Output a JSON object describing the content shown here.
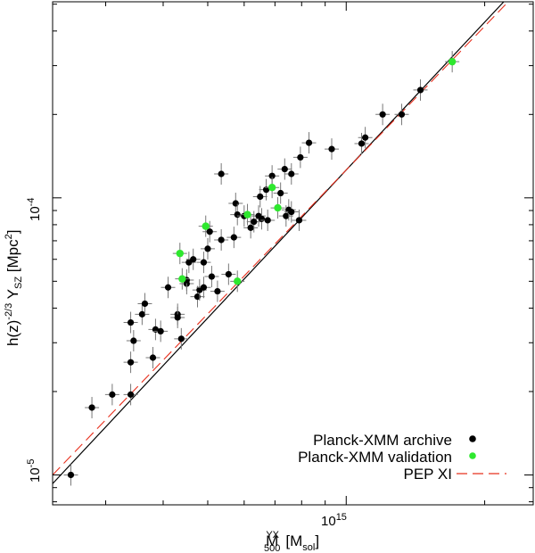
{
  "chart_data": {
    "type": "scatter",
    "xscale": "log",
    "yscale": "log",
    "xlim": [
      230000000000000.0,
      2550000000000000.0
    ],
    "ylim": [
      7.8e-06,
      0.00051
    ],
    "xlabel": {
      "main": "M",
      "sup": "YX",
      "sub": "500",
      "unit": "[M",
      "unit_sub": "sol",
      "unit_end": "]"
    },
    "ylabel": {
      "main": "h(z)",
      "sup": "-2/3",
      "mid": " Y",
      "sub": "SZ",
      "unit": " [Mpc",
      "unit_sup": "2",
      "unit_end": "]"
    },
    "xticks": [
      {
        "value": 1000000000000000.0,
        "base": "10",
        "exp": "15"
      }
    ],
    "yticks": [
      {
        "value": 1e-05,
        "base": "10",
        "exp": "-5"
      },
      {
        "value": 0.0001,
        "base": "10",
        "exp": "-4"
      }
    ],
    "legend": {
      "position": "bottom-right",
      "entries": [
        {
          "label": "Planck-XMM archive",
          "marker": "dot",
          "color": "#000000"
        },
        {
          "label": "Planck-XMM validation",
          "marker": "dot",
          "color": "#2ee82e"
        },
        {
          "label": "PEP XI",
          "marker": "dash",
          "color": "#e8301e"
        }
      ]
    },
    "fits": [
      {
        "name": "best fit",
        "color": "#000000",
        "style": "solid",
        "from": [
          230000000000000.0,
          9.3e-06
        ],
        "to": [
          2200000000000000.0,
          0.00051
        ]
      },
      {
        "name": "PEP XI",
        "color": "#e8301e",
        "style": "dashed",
        "from": [
          230000000000000.0,
          1e-05
        ],
        "to": [
          2250000000000000.0,
          0.00051
        ]
      }
    ],
    "series": [
      {
        "name": "Planck-XMM archive",
        "color": "#000000",
        "points": [
          [
            252000000000000.0,
            1e-05
          ],
          [
            280000000000000.0,
            1.75e-05
          ],
          [
            310000000000000.0,
            1.95e-05
          ],
          [
            340000000000000.0,
            1.95e-05
          ],
          [
            340000000000000.0,
            2.55e-05
          ],
          [
            345000000000000.0,
            3.05e-05
          ],
          [
            340000000000000.0,
            3.55e-05
          ],
          [
            360000000000000.0,
            3.8e-05
          ],
          [
            365000000000000.0,
            4.15e-05
          ],
          [
            380000000000000.0,
            2.65e-05
          ],
          [
            385000000000000.0,
            3.35e-05
          ],
          [
            395000000000000.0,
            3.3e-05
          ],
          [
            410000000000000.0,
            4.75e-05
          ],
          [
            430000000000000.0,
            3.8e-05
          ],
          [
            430000000000000.0,
            3.7e-05
          ],
          [
            438000000000000.0,
            3.1e-05
          ],
          [
            450000000000000.0,
            4.9e-05
          ],
          [
            450000000000000.0,
            5.05e-05
          ],
          [
            455000000000000.0,
            5.85e-05
          ],
          [
            465000000000000.0,
            6e-05
          ],
          [
            475000000000000.0,
            4.4e-05
          ],
          [
            480000000000000.0,
            4.65e-05
          ],
          [
            490000000000000.0,
            5.85e-05
          ],
          [
            490000000000000.0,
            4.75e-05
          ],
          [
            500000000000000.0,
            6.55e-05
          ],
          [
            510000000000000.0,
            5.2e-05
          ],
          [
            525000000000000.0,
            4.6e-05
          ],
          [
            535000000000000.0,
            7.05e-05
          ],
          [
            505000000000000.0,
            7.55e-05
          ],
          [
            535000000000000.0,
            0.000122
          ],
          [
            555000000000000.0,
            5.3e-05
          ],
          [
            570000000000000.0,
            7.2e-05
          ],
          [
            575000000000000.0,
            9.55e-05
          ],
          [
            580000000000000.0,
            8.7e-05
          ],
          [
            600000000000000.0,
            8.6e-05
          ],
          [
            620000000000000.0,
            7.8e-05
          ],
          [
            630000000000000.0,
            8.2e-05
          ],
          [
            645000000000000.0,
            8.6e-05
          ],
          [
            655000000000000.0,
            8.4e-05
          ],
          [
            650000000000000.0,
            0.000101
          ],
          [
            670000000000000.0,
            0.000107
          ],
          [
            675000000000000.0,
            8.3e-05
          ],
          [
            690000000000000.0,
            0.00012
          ],
          [
            720000000000000.0,
            0.000104
          ],
          [
            740000000000000.0,
            8.6e-05
          ],
          [
            750000000000000.0,
            9.05e-05
          ],
          [
            760000000000000.0,
            8.9e-05
          ],
          [
            735000000000000.0,
            0.000127
          ],
          [
            760000000000000.0,
            0.000122
          ],
          [
            790000000000000.0,
            8.3e-05
          ],
          [
            795000000000000.0,
            0.00014
          ],
          [
            830000000000000.0,
            0.000158
          ],
          [
            930000000000000.0,
            0.00015
          ],
          [
            1080000000000000.0,
            0.000157
          ],
          [
            1100000000000000.0,
            0.000165
          ],
          [
            1200000000000000.0,
            0.0002
          ],
          [
            1320000000000000.0,
            0.0002
          ],
          [
            1450000000000000.0,
            0.000245
          ]
        ]
      },
      {
        "name": "Planck-XMM validation",
        "color": "#2ee82e",
        "points": [
          [
            435000000000000.0,
            6.3e-05
          ],
          [
            440000000000000.0,
            5.1e-05
          ],
          [
            495000000000000.0,
            7.9e-05
          ],
          [
            580000000000000.0,
            5e-05
          ],
          [
            610000000000000.0,
            8.7e-05
          ],
          [
            690000000000000.0,
            0.000109
          ],
          [
            710000000000000.0,
            9.2e-05
          ],
          [
            1700000000000000.0,
            0.00031
          ]
        ]
      }
    ]
  }
}
